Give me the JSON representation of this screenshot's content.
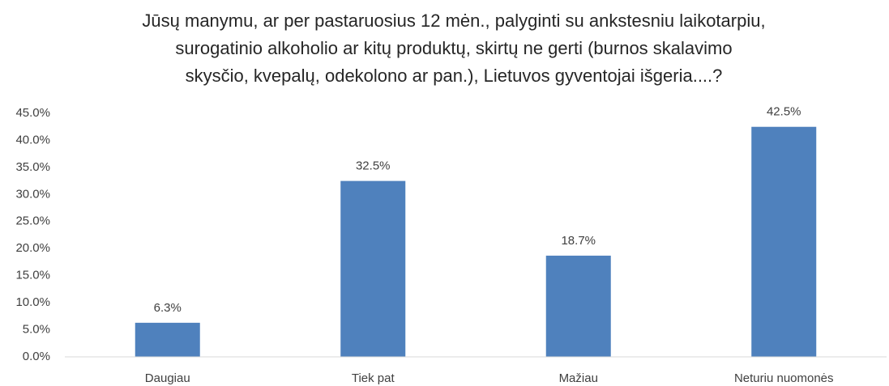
{
  "chart_data": {
    "type": "bar",
    "title": [
      "Jūsų manymu, ar per pastaruosius 12 mėn., palyginti su ankstesniu laikotarpiu,",
      "surogatinio alkoholio ar kitų produktų,  skirtų ne gerti (burnos skalavimo",
      "skysčio, kvepalų, odekolono  ar pan.), Lietuvos gyventojai išgeria....?"
    ],
    "categories": [
      "Daugiau",
      "Tiek pat",
      "Mažiau",
      "Neturiu nuomonės"
    ],
    "values": [
      6.3,
      32.5,
      18.7,
      42.5
    ],
    "value_labels": [
      "6.3%",
      "32.5%",
      "18.7%",
      "42.5%"
    ],
    "color": "#4f81bd",
    "ylim": [
      0,
      45
    ],
    "yticks": [
      {
        "value": 0,
        "label": "0.0%"
      },
      {
        "value": 5,
        "label": "5.0%"
      },
      {
        "value": 10,
        "label": "10.0%"
      },
      {
        "value": 15,
        "label": "15.0%"
      },
      {
        "value": 20,
        "label": "20.0%"
      },
      {
        "value": 25,
        "label": "25.0%"
      },
      {
        "value": 30,
        "label": "30.0%"
      },
      {
        "value": 35,
        "label": "35.0%"
      },
      {
        "value": 40,
        "label": "40.0%"
      },
      {
        "value": 45,
        "label": "45.0%"
      }
    ],
    "grid": false
  }
}
